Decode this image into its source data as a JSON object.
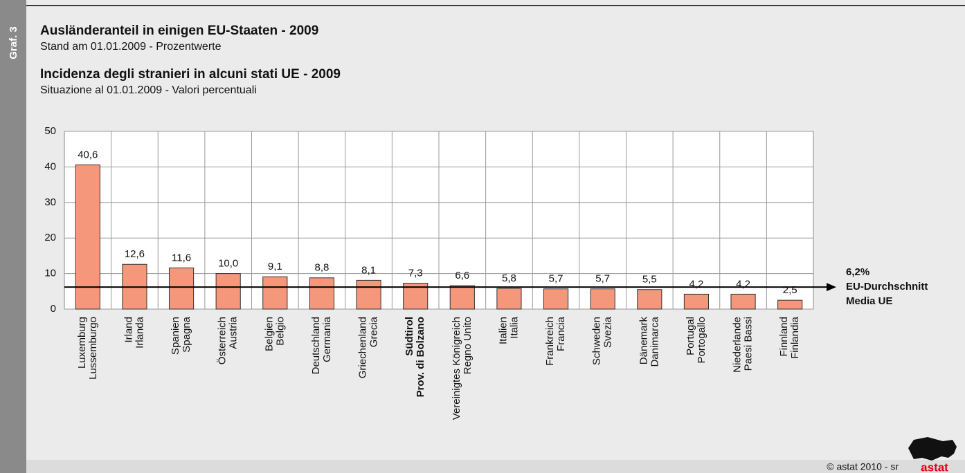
{
  "chart_data": {
    "type": "bar",
    "side_label": "Graf. 3",
    "title": "Ausländeranteil in einigen EU-Staaten - 2009",
    "subtitle": "Stand am 01.01.2009 - Prozentwerte",
    "title2": "Incidenza degli stranieri in alcuni stati UE - 2009",
    "subtitle2": "Situazione al 01.01.2009 - Valori percentuali",
    "categories": [
      [
        "Luxemburg",
        "Lussemburgo"
      ],
      [
        "Irland",
        "Irlanda"
      ],
      [
        "Spanien",
        "Spagna"
      ],
      [
        "Österreich",
        "Austria"
      ],
      [
        "Belgien",
        "Belgio"
      ],
      [
        "Deutschland",
        "Germania"
      ],
      [
        "Griechenland",
        "Grecia"
      ],
      [
        "Südtirol",
        "Prov. di Bolzano"
      ],
      [
        "Vereinigtes Königreich",
        "Regno Unito"
      ],
      [
        "Italien",
        "Italia"
      ],
      [
        "Frankreich",
        "Francia"
      ],
      [
        "Schweden",
        "Svezia"
      ],
      [
        "Dänemark",
        "Danimarca"
      ],
      [
        "Portugal",
        "Portogallo"
      ],
      [
        "Niederlande",
        "Paesi Bassi"
      ],
      [
        "Finnland",
        "Finlandia"
      ]
    ],
    "values": [
      40.6,
      12.6,
      11.6,
      10.0,
      9.1,
      8.8,
      8.1,
      7.3,
      6.6,
      5.8,
      5.7,
      5.7,
      5.5,
      4.2,
      4.2,
      2.5
    ],
    "value_labels": [
      "40,6",
      "12,6",
      "11,6",
      "10,0",
      "9,1",
      "8,8",
      "8,1",
      "7,3",
      "6,6",
      "5,8",
      "5,7",
      "5,7",
      "5,5",
      "4,2",
      "4,2",
      "2,5"
    ],
    "highlight_category": 7,
    "color": "#f4977a",
    "ylim": [
      0,
      50
    ],
    "yticks": [
      0,
      10,
      20,
      30,
      40,
      50
    ],
    "grid": true,
    "reference": {
      "value": 6.2,
      "label": "6,2%",
      "text": [
        "EU-Durchschnitt",
        "Media UE"
      ]
    },
    "footer": "© astat 2010 - sr",
    "logo": "astat"
  }
}
